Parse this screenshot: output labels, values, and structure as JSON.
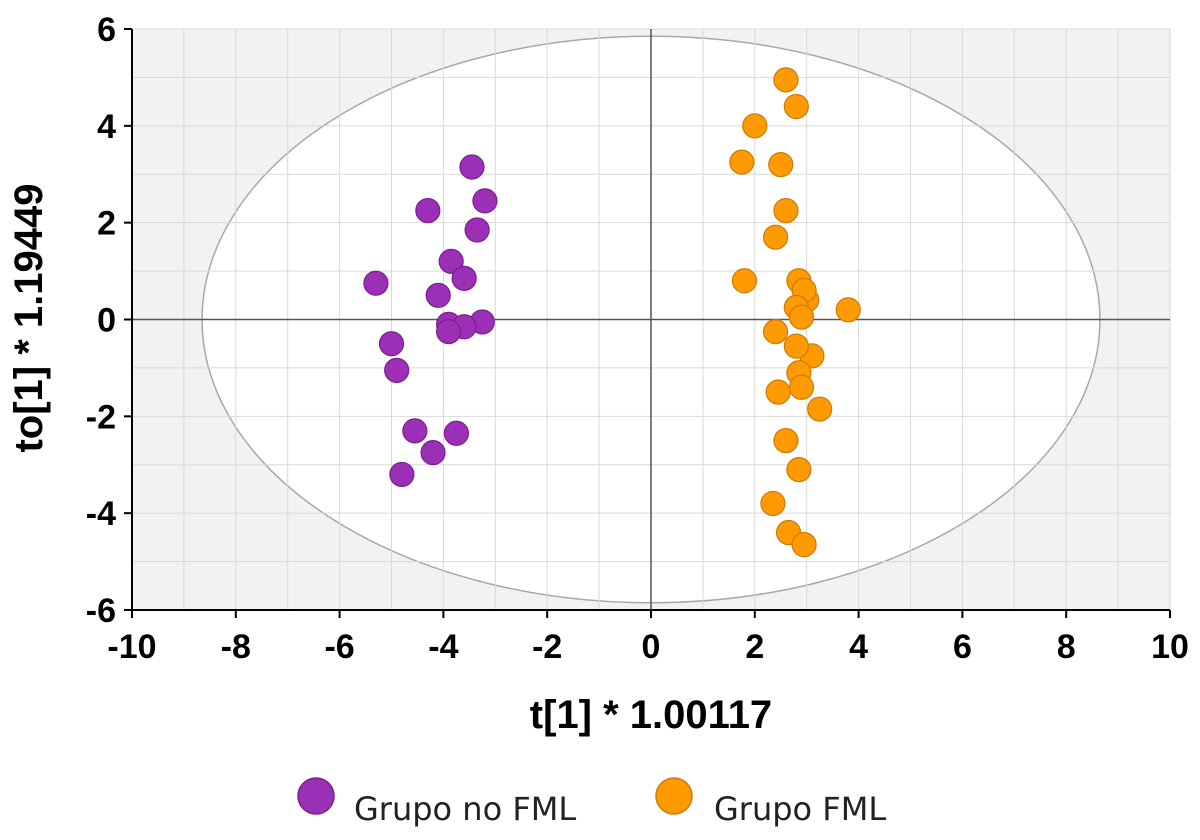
{
  "chart_data": {
    "type": "scatter",
    "xlabel": "t[1] * 1.00117",
    "ylabel": "to[1] * 1.19449",
    "xlim": [
      -10,
      10
    ],
    "ylim": [
      -6,
      6
    ],
    "x_ticks": [
      -10,
      -8,
      -6,
      -4,
      -2,
      0,
      2,
      4,
      6,
      8,
      10
    ],
    "y_ticks": [
      -6,
      -4,
      -2,
      0,
      2,
      4,
      6
    ],
    "grid": true,
    "confidence_ellipse": {
      "center": [
        0,
        0
      ],
      "semi_axis_x": 8.65,
      "semi_axis_y": 5.85
    },
    "legend_position": "bottom",
    "series": [
      {
        "name": "Grupo no FML",
        "color": "#9b2fb5",
        "edge_color": "#7a1f90",
        "points": [
          [
            -3.45,
            3.15
          ],
          [
            -3.2,
            2.45
          ],
          [
            -4.3,
            2.25
          ],
          [
            -3.35,
            1.85
          ],
          [
            -3.85,
            1.2
          ],
          [
            -3.6,
            0.85
          ],
          [
            -5.3,
            0.75
          ],
          [
            -4.1,
            0.5
          ],
          [
            -3.25,
            -0.05
          ],
          [
            -3.9,
            -0.1
          ],
          [
            -3.6,
            -0.15
          ],
          [
            -3.9,
            -0.25
          ],
          [
            -5.0,
            -0.5
          ],
          [
            -4.9,
            -1.05
          ],
          [
            -4.55,
            -2.3
          ],
          [
            -3.75,
            -2.35
          ],
          [
            -4.2,
            -2.75
          ],
          [
            -4.8,
            -3.2
          ]
        ]
      },
      {
        "name": "Grupo FML",
        "color": "#ff9a00",
        "edge_color": "#cc7a00",
        "points": [
          [
            2.6,
            4.95
          ],
          [
            2.8,
            4.4
          ],
          [
            2.0,
            4.0
          ],
          [
            1.75,
            3.25
          ],
          [
            2.5,
            3.2
          ],
          [
            2.6,
            2.25
          ],
          [
            2.4,
            1.7
          ],
          [
            1.8,
            0.8
          ],
          [
            2.85,
            0.8
          ],
          [
            3.0,
            0.4
          ],
          [
            2.95,
            0.6
          ],
          [
            3.8,
            0.2
          ],
          [
            2.8,
            0.25
          ],
          [
            2.9,
            0.05
          ],
          [
            2.4,
            -0.25
          ],
          [
            3.1,
            -0.75
          ],
          [
            2.8,
            -0.55
          ],
          [
            2.85,
            -1.1
          ],
          [
            2.45,
            -1.5
          ],
          [
            2.9,
            -1.4
          ],
          [
            3.25,
            -1.85
          ],
          [
            2.6,
            -2.5
          ],
          [
            2.85,
            -3.1
          ],
          [
            2.35,
            -3.8
          ],
          [
            2.65,
            -4.4
          ],
          [
            2.95,
            -4.65
          ]
        ]
      }
    ]
  }
}
